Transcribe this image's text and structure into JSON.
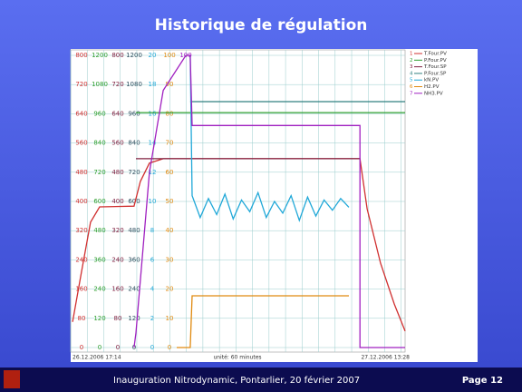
{
  "title": "Historique de régulation",
  "footer": {
    "text": "Inauguration Nitrodynamic, Pontarlier, 20 février 2007",
    "page": "Page 12"
  },
  "chart_data": {
    "type": "line",
    "x_start_label": "26.12.2006 17:14",
    "x_unit_label": "unité: 60 minutes",
    "x_end_label": "27.12.2006 13:28",
    "xlim": [
      0,
      1214
    ],
    "xticks": [
      0,
      60,
      120,
      180,
      240,
      300,
      360,
      420,
      480,
      540,
      600,
      660,
      720,
      780,
      840,
      900,
      960,
      1020,
      1080,
      1140,
      1200
    ],
    "grid": true,
    "axes": [
      {
        "color": "#d03030",
        "ylim": [
          0,
          800
        ],
        "yticks": [
          0,
          80,
          160,
          240,
          320,
          400,
          480,
          560,
          640,
          720,
          800
        ]
      },
      {
        "color": "#30a030",
        "ylim": [
          0,
          1200
        ],
        "yticks": [
          0,
          120,
          240,
          360,
          480,
          600,
          720,
          840,
          960,
          1080,
          1200
        ]
      },
      {
        "color": "#802040",
        "ylim": [
          0,
          800
        ],
        "yticks": [
          0,
          80,
          160,
          240,
          320,
          400,
          480,
          560,
          640,
          720,
          800
        ]
      },
      {
        "color": "#305060",
        "ylim": [
          0,
          1200
        ],
        "yticks": [
          0,
          120,
          240,
          360,
          480,
          600,
          720,
          840,
          960,
          1080,
          1200
        ]
      },
      {
        "color": "#20a8d8",
        "ylim": [
          0,
          20
        ],
        "yticks": [
          0,
          2,
          4,
          6,
          8,
          10,
          12,
          14,
          16,
          18,
          20
        ]
      },
      {
        "color": "#e08a10",
        "ylim": [
          0,
          100
        ],
        "yticks": [
          0,
          10,
          20,
          30,
          40,
          50,
          60,
          70,
          80,
          90,
          100
        ]
      },
      {
        "color": "#a020c0",
        "ylim": [
          0,
          100
        ],
        "yticks": [
          100
        ]
      }
    ],
    "series": [
      {
        "key": "1",
        "name": "T.Four.PV",
        "color": "#d03030",
        "axis": 0,
        "x": [
          7,
          39,
          72,
          105,
          230,
          253,
          286,
          336,
          1050,
          1076,
          1125,
          1175,
          1214
        ],
        "values": [
          70,
          207,
          343,
          385,
          387,
          455,
          505,
          517,
          517,
          380,
          231,
          119,
          45
        ]
      },
      {
        "key": "2",
        "name": "P.Four.PV",
        "color": "#30a030",
        "axis": 1,
        "x": [
          237,
          1214
        ],
        "values": [
          965,
          965
        ]
      },
      {
        "key": "3",
        "name": "T.Four.SP",
        "color": "#802040",
        "axis": 2,
        "x": [
          237,
          1050
        ],
        "values": [
          517,
          517
        ]
      },
      {
        "key": "4",
        "name": "P.Four.SP",
        "color": "#308080",
        "axis": 3,
        "x": [
          434,
          1214
        ],
        "values": [
          1010,
          1010
        ]
      },
      {
        "key": "5",
        "name": "kN.PV",
        "color": "#20a8d8",
        "axis": 4,
        "x": [
          434,
          441,
          470,
          500,
          530,
          560,
          590,
          620,
          650,
          680,
          710,
          740,
          770,
          800,
          830,
          860,
          890,
          920,
          950,
          980,
          1010
        ],
        "values": [
          20,
          10.4,
          8.9,
          10.2,
          9.1,
          10.5,
          8.8,
          10.1,
          9.3,
          10.6,
          8.9,
          10.0,
          9.2,
          10.4,
          8.7,
          10.3,
          9.0,
          10.1,
          9.4,
          10.2,
          9.6
        ]
      },
      {
        "key": "6",
        "name": "H2.PV",
        "color": "#e08a10",
        "axis": 5,
        "x": [
          385,
          434,
          441,
          1010
        ],
        "values": [
          0,
          0,
          17.7,
          17.7
        ]
      },
      {
        "key": "7",
        "name": "NH3.PV",
        "color": "#a020c0",
        "axis": 6,
        "x": [
          230,
          237,
          286,
          336,
          418,
          434,
          441,
          1050,
          1050,
          1214
        ],
        "values": [
          0,
          5,
          60,
          88,
          100,
          100,
          76,
          76,
          0,
          0
        ]
      }
    ]
  }
}
